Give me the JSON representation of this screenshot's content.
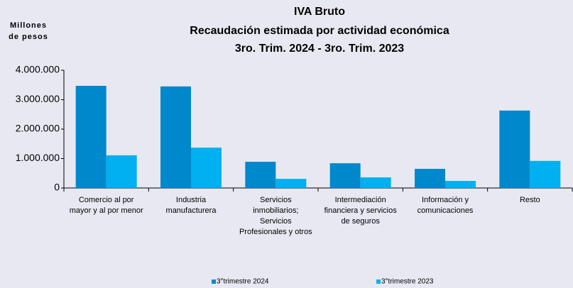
{
  "chart_data": {
    "type": "bar",
    "title": "IVA Bruto",
    "subtitle": [
      "Recaudación estimada por actividad económica",
      "3ro. Trim. 2024 - 3ro. Trim. 2023"
    ],
    "y_label": "Millones de pesos",
    "categories": [
      "Comercio al por mayor y al por menor",
      "Industria manufacturera",
      "Servicios inmobiliarios; Servicios Profesionales y otros",
      "Intermediación financiera y servicios de seguros",
      "Información y comunicaciones",
      "Resto"
    ],
    "series": [
      {
        "name": "3°trimestre 2024",
        "color": "#0088cc",
        "values": [
          3470000,
          3450000,
          890000,
          840000,
          650000,
          2630000
        ]
      },
      {
        "name": "3°trimestre 2023",
        "color": "#00b0f0",
        "values": [
          1110000,
          1370000,
          310000,
          360000,
          240000,
          920000
        ]
      }
    ],
    "ylim": [
      0,
      4000000
    ],
    "yticks": [
      {
        "value": 0,
        "label": "0"
      },
      {
        "value": 1000000,
        "label": "1.000.000"
      },
      {
        "value": 2000000,
        "label": "2.000.000"
      },
      {
        "value": 3000000,
        "label": "3.000.000"
      },
      {
        "value": 4000000,
        "label": "4.000.000"
      }
    ],
    "grid": false,
    "legend": "bottom"
  }
}
